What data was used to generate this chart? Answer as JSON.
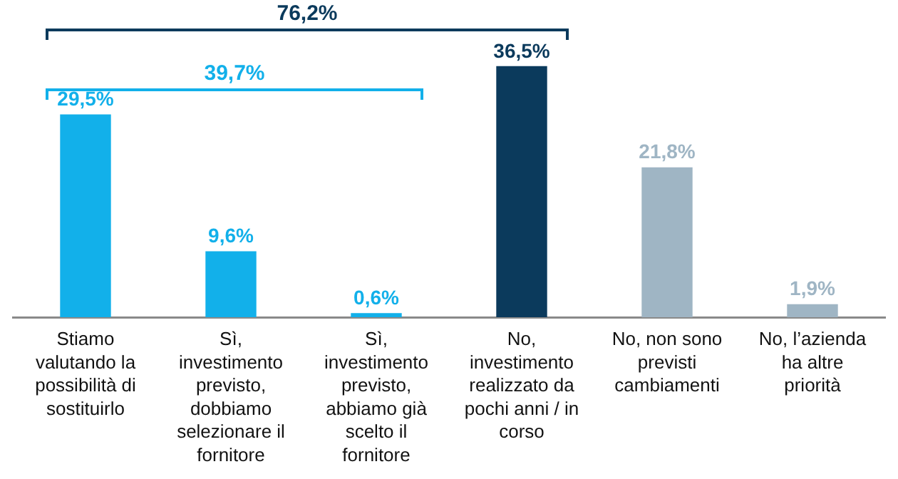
{
  "chart_data": {
    "type": "bar",
    "categories": [
      "Stiamo valutando la possibilità di sostituirlo",
      "Sì, investimento previsto, dobbiamo selezionare il fornitore",
      "Sì, investimento previsto, abbiamo già scelto il fornitore",
      "No, investimento realizzato da pochi anni / in corso",
      "No, non sono previsti cambiamenti",
      "No, l’azienda ha altre priorità"
    ],
    "values": [
      29.5,
      9.6,
      0.6,
      36.5,
      21.8,
      1.9
    ],
    "colors": [
      "#12b0ea",
      "#12b0ea",
      "#12b0ea",
      "#0b3a5c",
      "#9fb5c4",
      "#9fb5c4"
    ],
    "value_labels": [
      "29,5%",
      "9,6%",
      "0,6%",
      "36,5%",
      "21,8%",
      "1,9%"
    ],
    "annotations": [
      "76,2%",
      "39,7%"
    ],
    "grid": false,
    "legend": false
  }
}
